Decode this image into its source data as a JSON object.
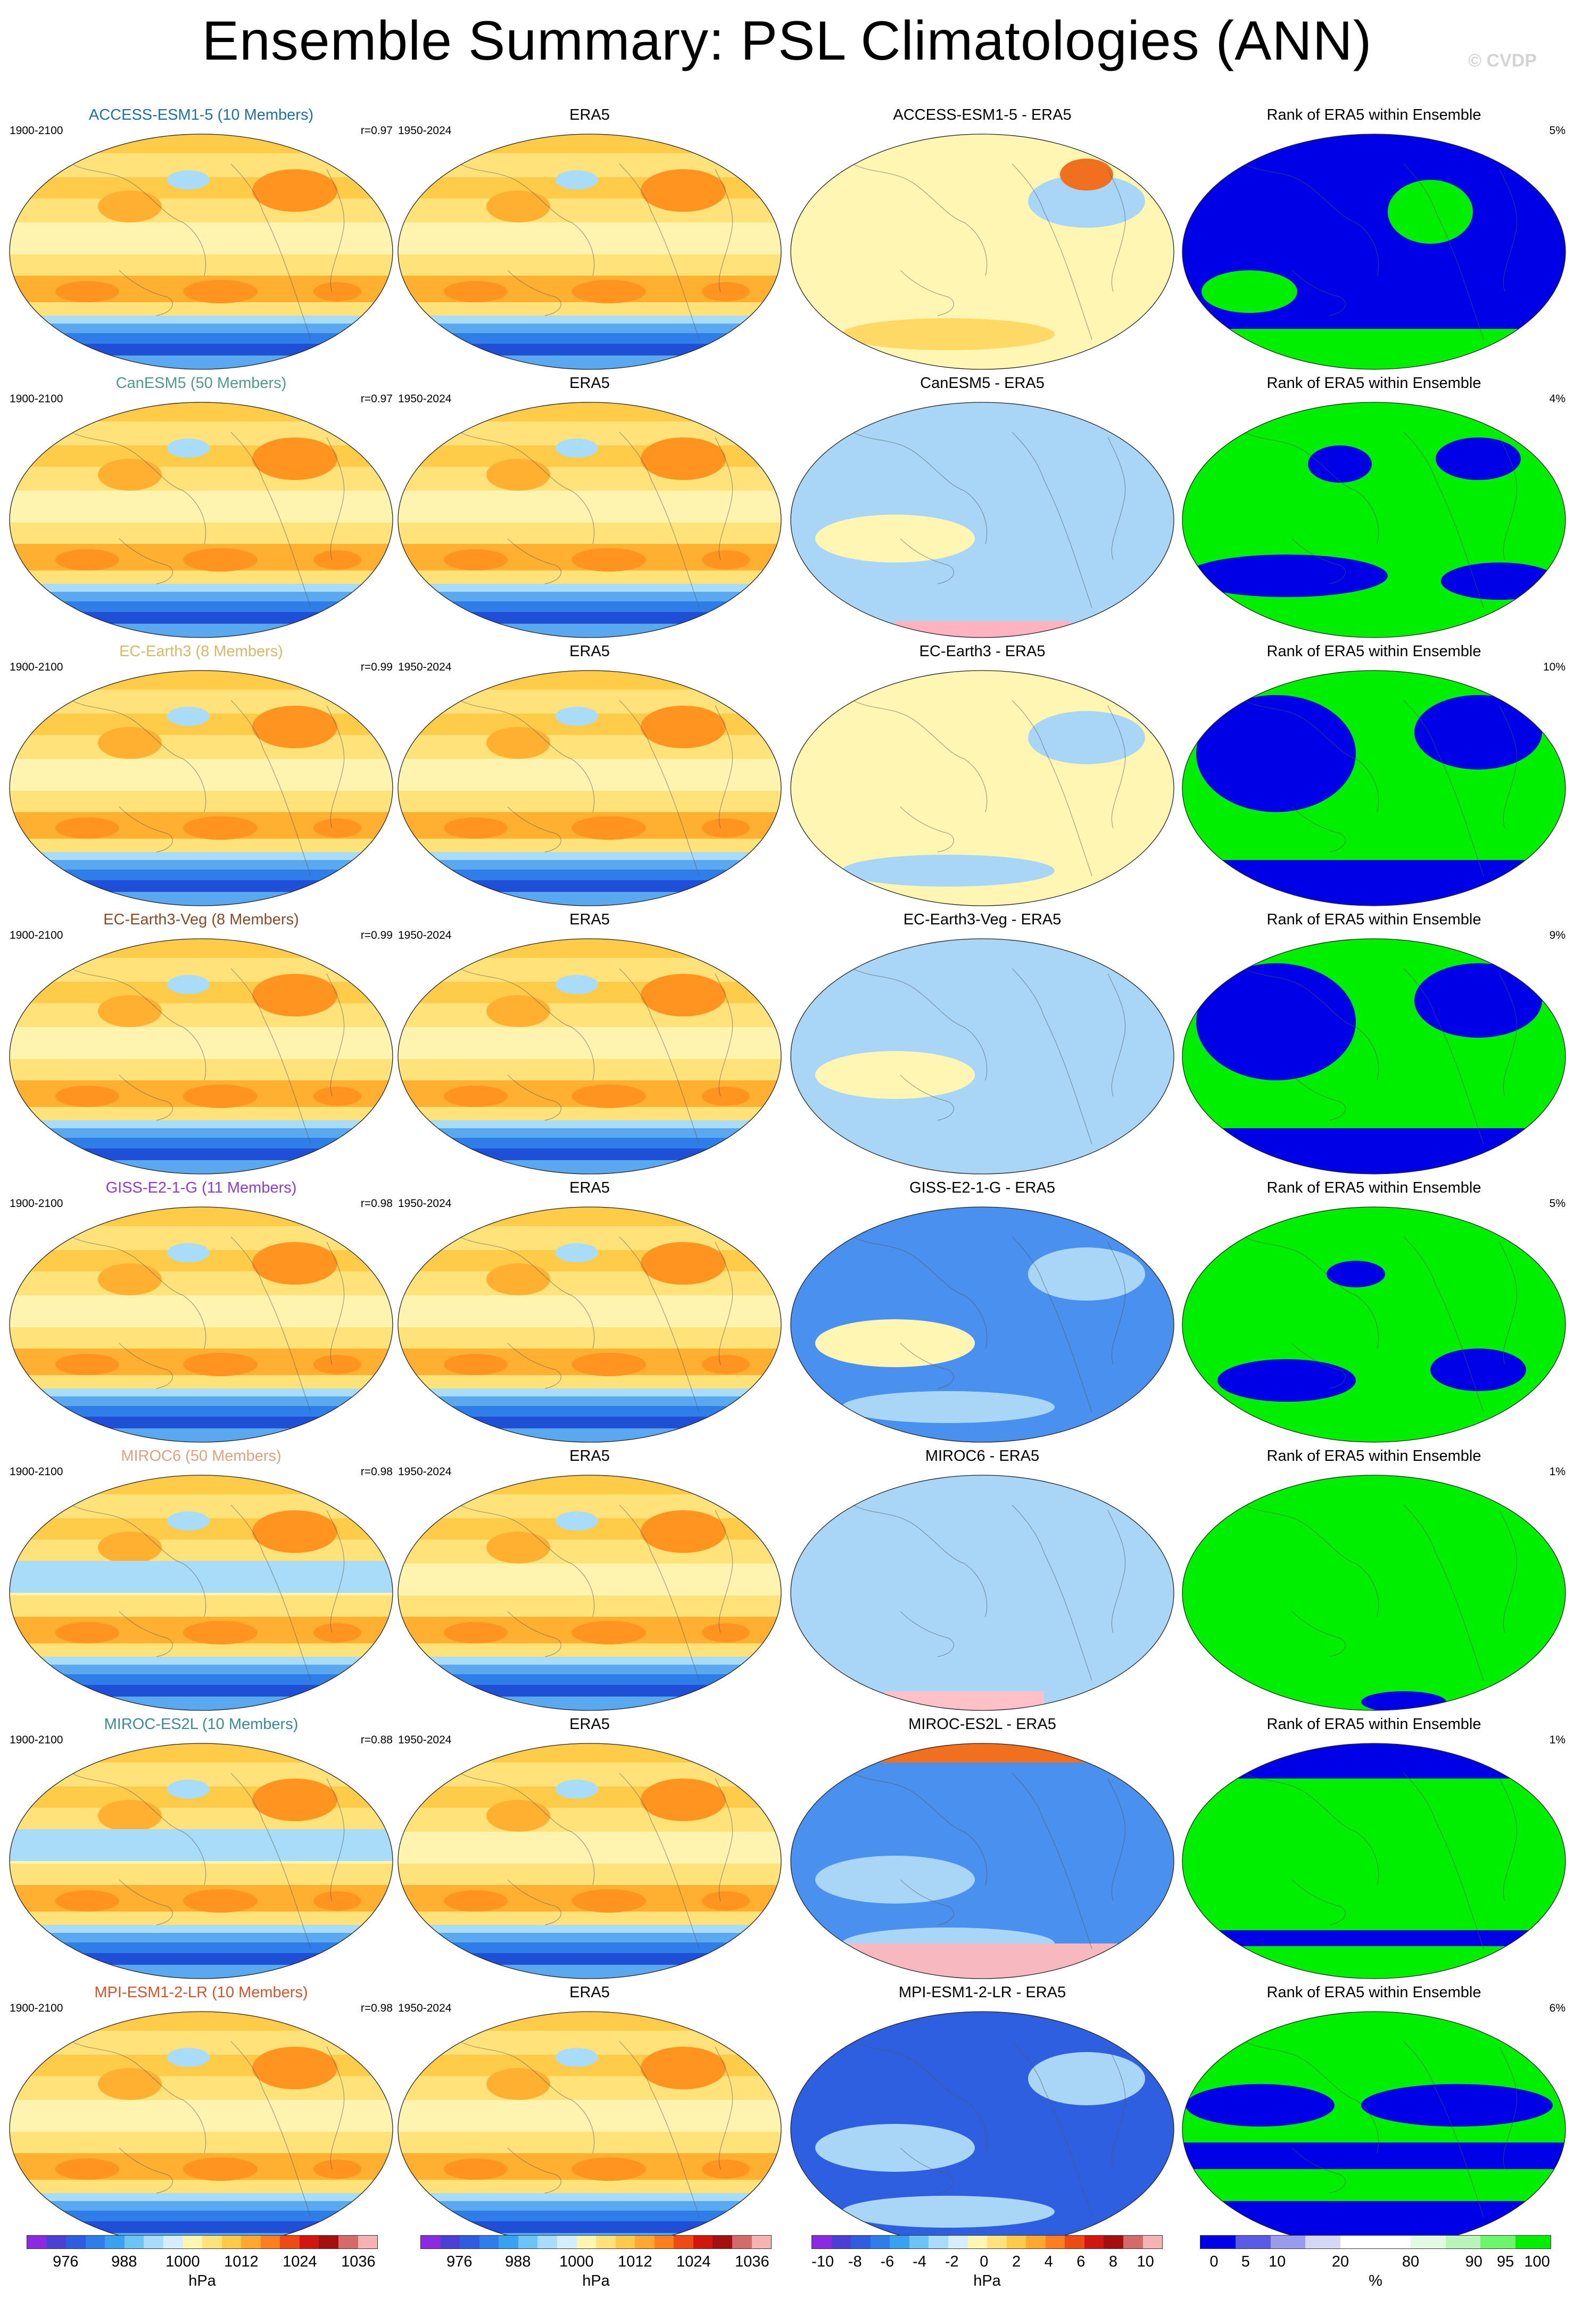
{
  "title": "Ensemble Summary: PSL Climatologies (ANN)",
  "copyright": "© CVDP",
  "column_titles": {
    "era5": "ERA5",
    "rank": "Rank of ERA5 within Ensemble"
  },
  "era5_years": "1950-2024",
  "rows": [
    {
      "model": "ACCESS-ESM1-5 (10 Members)",
      "model_color": "#1f6fa8",
      "years": "1900-2100",
      "r": "r=0.97",
      "diff_title": "ACCESS-ESM1-5 - ERA5",
      "rank_pct": "5%"
    },
    {
      "model": "CanESM5 (50 Members)",
      "model_color": "#4f9a8b",
      "years": "1900-2100",
      "r": "r=0.97",
      "diff_title": "CanESM5 - ERA5",
      "rank_pct": "4%"
    },
    {
      "model": "EC-Earth3 (8 Members)",
      "model_color": "#d4b96a",
      "years": "1900-2100",
      "r": "r=0.99",
      "diff_title": "EC-Earth3 - ERA5",
      "rank_pct": "10%"
    },
    {
      "model": "EC-Earth3-Veg (8 Members)",
      "model_color": "#8a4a26",
      "years": "1900-2100",
      "r": "r=0.99",
      "diff_title": "EC-Earth3-Veg - ERA5",
      "rank_pct": "9%"
    },
    {
      "model": "GISS-E2-1-G (11 Members)",
      "model_color": "#8c3bd6",
      "years": "1900-2100",
      "r": "r=0.98",
      "diff_title": "GISS-E2-1-G - ERA5",
      "rank_pct": "5%"
    },
    {
      "model": "MIROC6 (50 Members)",
      "model_color": "#e0a27e",
      "years": "1900-2100",
      "r": "r=0.98",
      "diff_title": "MIROC6 - ERA5",
      "rank_pct": "1%"
    },
    {
      "model": "MIROC-ES2L (10 Members)",
      "model_color": "#3d8a96",
      "years": "1900-2100",
      "r": "r=0.88",
      "diff_title": "MIROC-ES2L - ERA5",
      "rank_pct": "1%"
    },
    {
      "model": "MPI-ESM1-2-LR (10 Members)",
      "model_color": "#d2562c",
      "years": "1900-2100",
      "r": "r=0.98",
      "diff_title": "MPI-ESM1-2-LR - ERA5",
      "rank_pct": "6%"
    }
  ],
  "colorbars": [
    {
      "labels": [
        "976",
        "988",
        "1000",
        "1012",
        "1024",
        "1036"
      ],
      "unit": "hPa",
      "colors": [
        "#8a2be2",
        "#4b3fd6",
        "#2f5ce0",
        "#2e7de8",
        "#3aa0f0",
        "#6cc3f5",
        "#a8dcf8",
        "#d5eefb",
        "#fff6b3",
        "#ffe27a",
        "#ffc94a",
        "#ffa72e",
        "#ff7f1f",
        "#f04a14",
        "#d1160f",
        "#a40f0f",
        "#d46a6a",
        "#f5b3b3"
      ]
    },
    {
      "labels": [
        "976",
        "988",
        "1000",
        "1012",
        "1024",
        "1036"
      ],
      "unit": "hPa",
      "colors": [
        "#8a2be2",
        "#4b3fd6",
        "#2f5ce0",
        "#2e7de8",
        "#3aa0f0",
        "#6cc3f5",
        "#a8dcf8",
        "#d5eefb",
        "#fff6b3",
        "#ffe27a",
        "#ffc94a",
        "#ffa72e",
        "#ff7f1f",
        "#f04a14",
        "#d1160f",
        "#a40f0f",
        "#d46a6a",
        "#f5b3b3"
      ]
    },
    {
      "labels": [
        "-10",
        "-8",
        "-6",
        "-4",
        "-2",
        "0",
        "2",
        "4",
        "6",
        "8",
        "10"
      ],
      "unit": "hPa",
      "colors": [
        "#8a2be2",
        "#4b3fd6",
        "#2f5ce0",
        "#2e7de8",
        "#3aa0f0",
        "#6cc3f5",
        "#a8dcf8",
        "#d5eefb",
        "#fff6b3",
        "#ffe27a",
        "#ffc94a",
        "#ffa72e",
        "#ff7f1f",
        "#f04a14",
        "#d1160f",
        "#a40f0f",
        "#d46a6a",
        "#f5b3b3"
      ]
    },
    {
      "labels": [
        "0",
        "5",
        "10",
        "20",
        "80",
        "90",
        "95",
        "100"
      ],
      "unit": "%",
      "colors": [
        "#0000e6",
        "#5a5ae6",
        "#9b9bee",
        "#d6d6f7",
        "#ffffff",
        "#ffffff",
        "#e2fae2",
        "#b9f5b9",
        "#6ef56e",
        "#00ee00"
      ]
    }
  ]
}
